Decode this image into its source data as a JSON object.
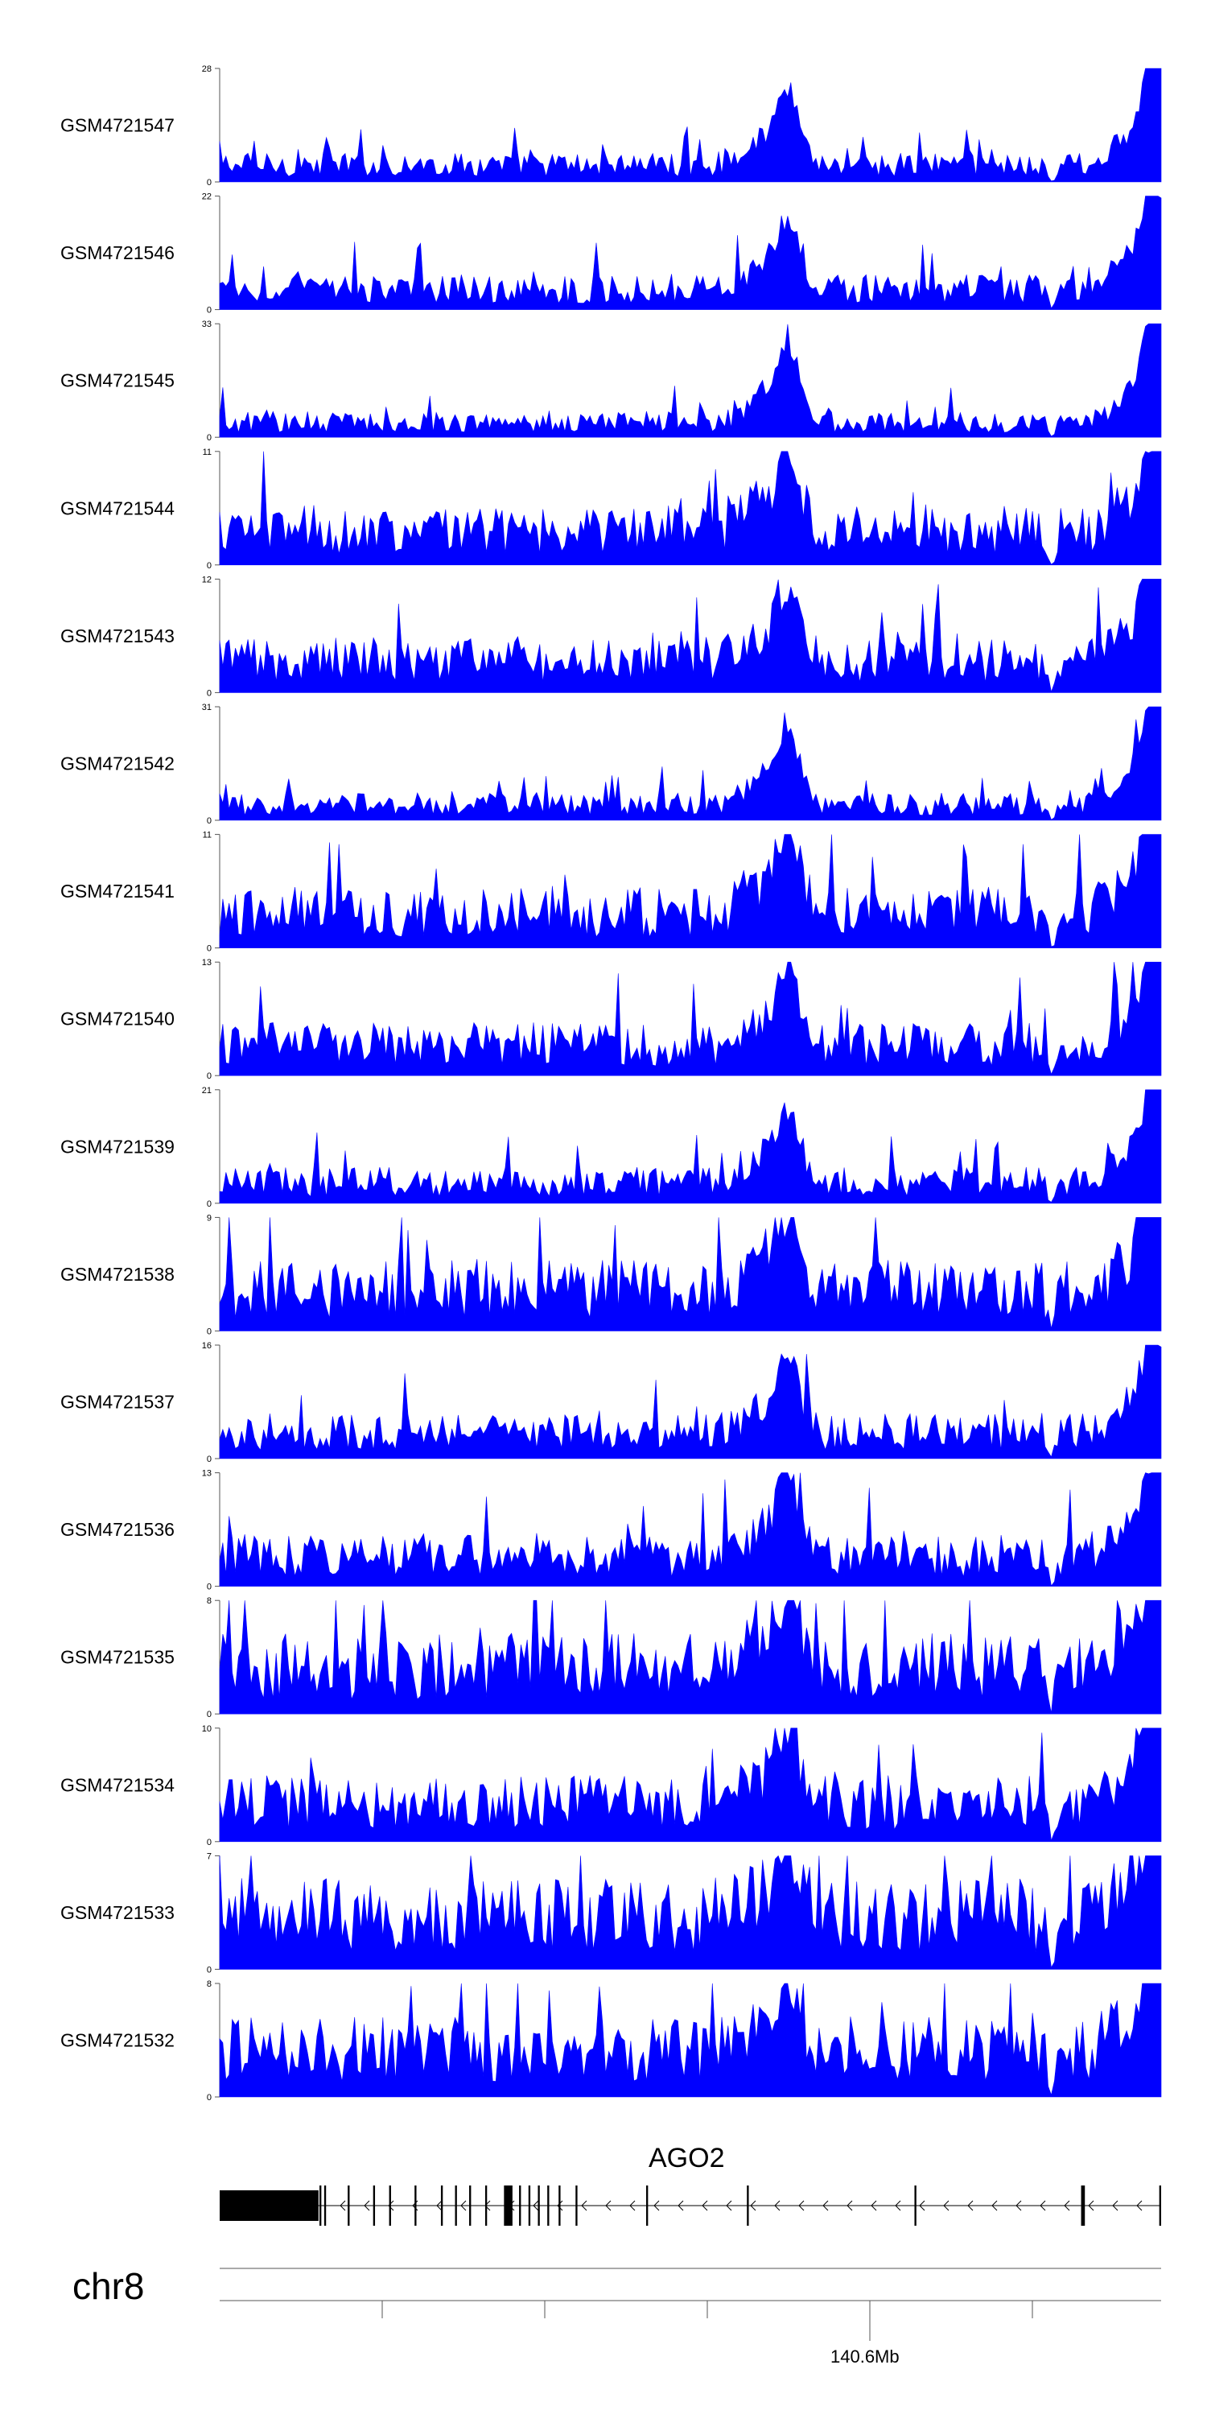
{
  "chart_data": {
    "type": "area",
    "title": "",
    "fill_color": "#0000ff",
    "axis_color": "#555555",
    "tracks": [
      {
        "name": "GSM4721547",
        "ymin": 0,
        "ymax": 28
      },
      {
        "name": "GSM4721546",
        "ymin": 0,
        "ymax": 22
      },
      {
        "name": "GSM4721545",
        "ymin": 0,
        "ymax": 33
      },
      {
        "name": "GSM4721544",
        "ymin": 0,
        "ymax": 11
      },
      {
        "name": "GSM4721543",
        "ymin": 0,
        "ymax": 12
      },
      {
        "name": "GSM4721542",
        "ymin": 0,
        "ymax": 31
      },
      {
        "name": "GSM4721541",
        "ymin": 0,
        "ymax": 11
      },
      {
        "name": "GSM4721540",
        "ymin": 0,
        "ymax": 13
      },
      {
        "name": "GSM4721539",
        "ymin": 0,
        "ymax": 21
      },
      {
        "name": "GSM4721538",
        "ymin": 0,
        "ymax": 9
      },
      {
        "name": "GSM4721537",
        "ymin": 0,
        "ymax": 16
      },
      {
        "name": "GSM4721536",
        "ymin": 0,
        "ymax": 13
      },
      {
        "name": "GSM4721535",
        "ymin": 0,
        "ymax": 8
      },
      {
        "name": "GSM4721534",
        "ymin": 0,
        "ymax": 10
      },
      {
        "name": "GSM4721533",
        "ymin": 0,
        "ymax": 7
      },
      {
        "name": "GSM4721532",
        "ymin": 0,
        "ymax": 8
      }
    ],
    "gene": {
      "name": "AGO2",
      "strand": "-",
      "exons": [
        {
          "start": 0.0,
          "end": 0.105
        },
        {
          "start": 0.106,
          "end": 0.108
        },
        {
          "start": 0.111,
          "end": 0.113
        },
        {
          "start": 0.136,
          "end": 0.138
        },
        {
          "start": 0.163,
          "end": 0.165
        },
        {
          "start": 0.18,
          "end": 0.182
        },
        {
          "start": 0.207,
          "end": 0.209
        },
        {
          "start": 0.235,
          "end": 0.237
        },
        {
          "start": 0.25,
          "end": 0.252
        },
        {
          "start": 0.265,
          "end": 0.267
        },
        {
          "start": 0.282,
          "end": 0.284
        },
        {
          "start": 0.302,
          "end": 0.311
        },
        {
          "start": 0.318,
          "end": 0.32
        },
        {
          "start": 0.328,
          "end": 0.33
        },
        {
          "start": 0.338,
          "end": 0.34
        },
        {
          "start": 0.348,
          "end": 0.35
        },
        {
          "start": 0.36,
          "end": 0.362
        },
        {
          "start": 0.378,
          "end": 0.38
        },
        {
          "start": 0.453,
          "end": 0.455
        },
        {
          "start": 0.56,
          "end": 0.562
        },
        {
          "start": 0.738,
          "end": 0.74
        },
        {
          "start": 0.915,
          "end": 0.919
        },
        {
          "start": 0.998,
          "end": 1.0
        }
      ]
    },
    "chromosome": "chr8",
    "position_label": "140.6Mb"
  }
}
